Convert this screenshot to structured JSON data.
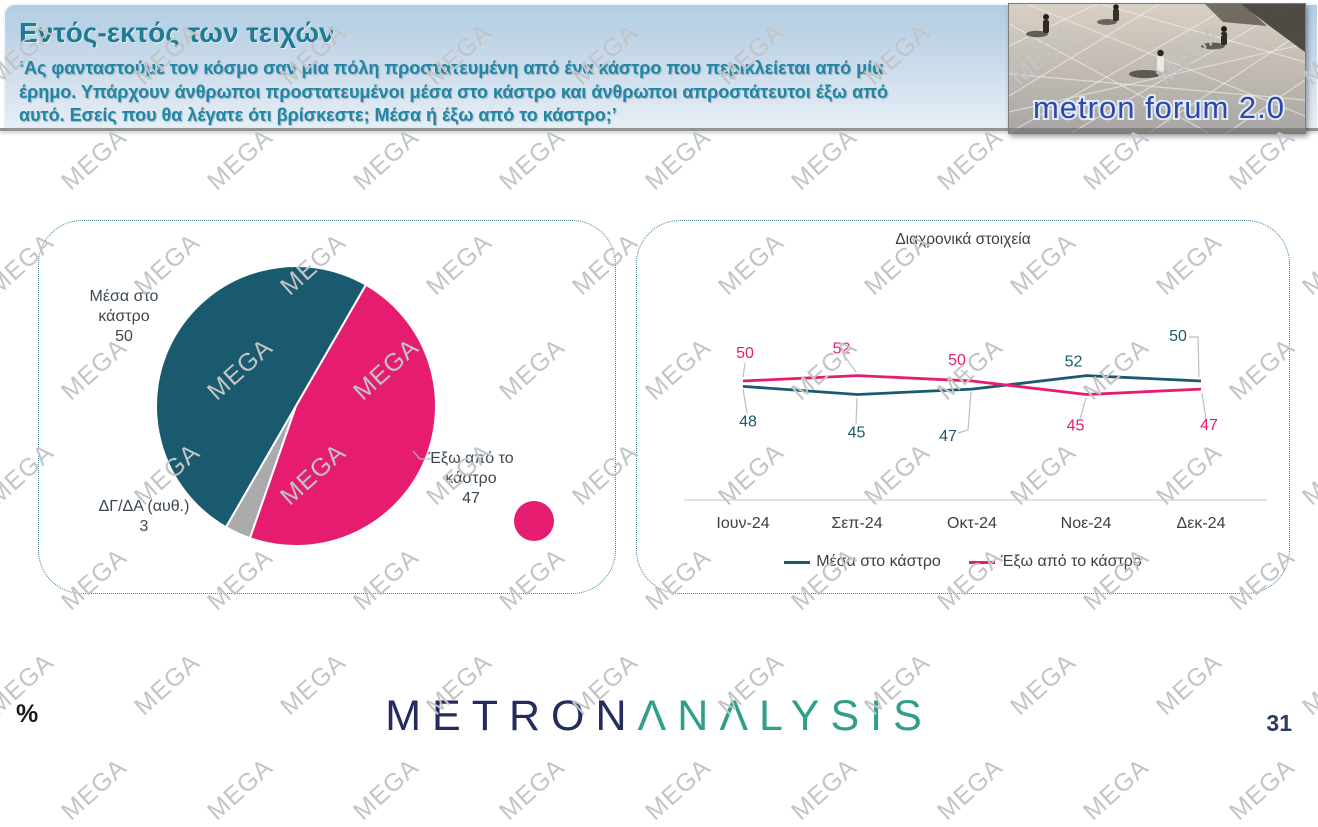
{
  "header": {
    "title": "Εντός-εκτός των τειχών",
    "subtitle_lines": [
      "‘Ας φανταστούμε τον κόσμο σαν μία πόλη προστατευμένη από ένα κάστρο που περικλείεται από μία",
      "έρημο. Υπάρχουν άνθρωποι προστατευμένοι μέσα στο κάστρο και άνθρωποι απροστάτευτοι έξω από",
      "αυτό. Εσείς που θα λέγατε ότι βρίσκεστε; Μέσα ή έξω από το κάστρο;’"
    ],
    "logo_text": "metron forum 2.0"
  },
  "watermark": {
    "text": "MEGA"
  },
  "chart_data": [
    {
      "type": "pie",
      "title": "",
      "start_angle_deg": 30,
      "slices": [
        {
          "label": "Έξω από το κάστρο",
          "value": 47,
          "color": "#E61C70"
        },
        {
          "label": "ΔΓ/ΔΑ (αυθ.)",
          "value": 3,
          "color": "#ABABAB"
        },
        {
          "label": "Μέσα στο κάστρο",
          "value": 50,
          "color": "#1A5A6E"
        }
      ],
      "labels_outside": true
    },
    {
      "type": "line",
      "title": "Διαχρονικά στοιχεία",
      "categories": [
        "Ιουν-24",
        "Σεπ-24",
        "Οκτ-24",
        "Νοε-24",
        "Δεκ-24"
      ],
      "series": [
        {
          "name": "Μέσα στο κάστρο",
          "color": "#1A5A6E",
          "values": [
            48,
            45,
            47,
            52,
            50
          ]
        },
        {
          "name": "Έξω από το κάστρο",
          "color": "#E61C70",
          "values": [
            50,
            52,
            50,
            45,
            47
          ]
        }
      ],
      "ylim": [
        40,
        56
      ],
      "grid": false,
      "data_labels": true,
      "legend_position": "bottom"
    }
  ],
  "footer": {
    "percent_label": "%",
    "logo_part1": "METRON",
    "logo_part2": "ΛNΛLYSIS",
    "page_number": "31"
  }
}
